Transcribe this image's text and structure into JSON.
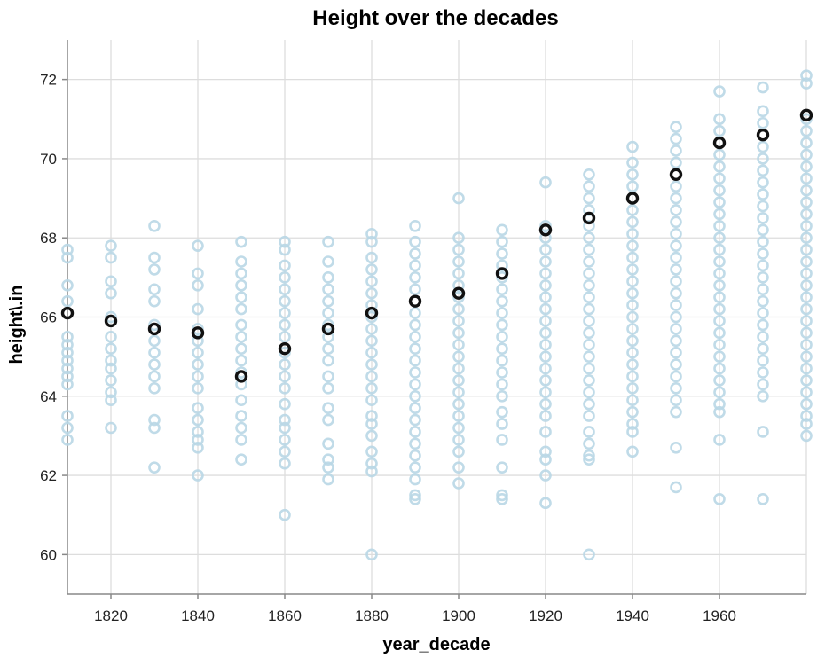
{
  "chart_data": {
    "type": "scatter",
    "title": "Height over the decades",
    "xlabel": "year_decade",
    "ylabel": "height\\.in",
    "xlim": [
      1810,
      1980
    ],
    "ylim": [
      59,
      73
    ],
    "xticks": [
      1820,
      1840,
      1860,
      1880,
      1900,
      1920,
      1940,
      1960
    ],
    "yticks": [
      60,
      62,
      64,
      66,
      68,
      70,
      72
    ],
    "grid": true,
    "colors": {
      "individual": "#b9d7e5",
      "mean": "#111111"
    },
    "series": [
      {
        "role": "individual",
        "columns": [
          {
            "x": 1810,
            "y": [
              67.7,
              67.5,
              66.8,
              66.4,
              66.1,
              65.5,
              65.3,
              65.1,
              64.9,
              64.7,
              64.5,
              64.3,
              63.5,
              63.2,
              62.9
            ]
          },
          {
            "x": 1820,
            "y": [
              67.8,
              67.5,
              66.9,
              66.6,
              66.0,
              65.5,
              65.2,
              64.9,
              64.7,
              64.4,
              64.1,
              63.9,
              63.2
            ]
          },
          {
            "x": 1830,
            "y": [
              68.3,
              67.5,
              67.2,
              66.7,
              66.4,
              65.8,
              65.4,
              65.1,
              64.8,
              64.5,
              64.2,
              63.4,
              63.2,
              62.2
            ]
          },
          {
            "x": 1840,
            "y": [
              67.8,
              67.1,
              66.8,
              66.2,
              65.7,
              65.4,
              65.1,
              64.8,
              64.5,
              64.2,
              63.7,
              63.4,
              63.1,
              62.9,
              62.7,
              62.0
            ]
          },
          {
            "x": 1850,
            "y": [
              67.9,
              67.4,
              67.1,
              66.8,
              66.5,
              66.2,
              65.8,
              65.5,
              65.2,
              64.9,
              64.6,
              64.3,
              63.9,
              63.5,
              63.2,
              62.9,
              62.4
            ]
          },
          {
            "x": 1860,
            "y": [
              67.9,
              67.7,
              67.3,
              67.0,
              66.7,
              66.4,
              66.1,
              65.8,
              65.5,
              65.1,
              64.8,
              64.5,
              64.2,
              63.8,
              63.4,
              63.2,
              62.9,
              62.6,
              62.3,
              61.0
            ]
          },
          {
            "x": 1870,
            "y": [
              67.9,
              67.4,
              67.0,
              66.7,
              66.4,
              66.1,
              65.8,
              65.5,
              65.2,
              64.9,
              64.5,
              64.2,
              63.7,
              63.4,
              62.8,
              62.4,
              62.2,
              61.9
            ]
          },
          {
            "x": 1880,
            "y": [
              68.1,
              67.9,
              67.5,
              67.2,
              66.9,
              66.6,
              66.3,
              66.0,
              65.7,
              65.4,
              65.1,
              64.8,
              64.5,
              64.2,
              63.9,
              63.5,
              63.3,
              63.0,
              62.6,
              62.3,
              62.1,
              60.0
            ]
          },
          {
            "x": 1890,
            "y": [
              68.3,
              67.9,
              67.6,
              67.3,
              67.0,
              66.7,
              66.4,
              66.1,
              65.8,
              65.5,
              65.2,
              64.9,
              64.6,
              64.3,
              64.0,
              63.7,
              63.4,
              63.1,
              62.8,
              62.5,
              62.2,
              61.9,
              61.5,
              61.4
            ]
          },
          {
            "x": 1900,
            "y": [
              69.0,
              68.0,
              67.7,
              67.4,
              67.1,
              66.8,
              66.5,
              66.2,
              65.9,
              65.6,
              65.3,
              65.0,
              64.7,
              64.4,
              64.1,
              63.8,
              63.5,
              63.2,
              62.9,
              62.6,
              62.2,
              61.8
            ]
          },
          {
            "x": 1910,
            "y": [
              68.2,
              67.9,
              67.6,
              67.3,
              67.0,
              66.7,
              66.4,
              66.1,
              65.8,
              65.5,
              65.2,
              64.9,
              64.6,
              64.3,
              64.0,
              63.6,
              63.3,
              62.9,
              62.2,
              61.5,
              61.4
            ]
          },
          {
            "x": 1920,
            "y": [
              69.4,
              68.3,
              68.0,
              67.7,
              67.4,
              67.1,
              66.8,
              66.5,
              66.2,
              65.9,
              65.6,
              65.3,
              65.0,
              64.7,
              64.4,
              64.1,
              63.8,
              63.5,
              63.1,
              62.6,
              62.4,
              62.0,
              61.3
            ]
          },
          {
            "x": 1930,
            "y": [
              69.6,
              69.3,
              69.0,
              68.7,
              68.3,
              68.0,
              67.7,
              67.4,
              67.1,
              66.8,
              66.5,
              66.2,
              65.9,
              65.6,
              65.3,
              65.0,
              64.7,
              64.4,
              64.1,
              63.8,
              63.5,
              63.1,
              62.8,
              62.5,
              62.4,
              60.0
            ]
          },
          {
            "x": 1940,
            "y": [
              70.3,
              69.9,
              69.6,
              69.3,
              69.0,
              68.7,
              68.4,
              68.1,
              67.8,
              67.5,
              67.2,
              66.9,
              66.6,
              66.3,
              66.0,
              65.7,
              65.4,
              65.1,
              64.8,
              64.5,
              64.2,
              63.9,
              63.6,
              63.3,
              63.1,
              62.6
            ]
          },
          {
            "x": 1950,
            "y": [
              70.8,
              70.5,
              70.2,
              69.9,
              69.6,
              69.3,
              69.0,
              68.7,
              68.4,
              68.1,
              67.8,
              67.5,
              67.2,
              66.9,
              66.6,
              66.3,
              66.0,
              65.7,
              65.4,
              65.1,
              64.8,
              64.5,
              64.2,
              63.9,
              63.6,
              62.7,
              61.7
            ]
          },
          {
            "x": 1960,
            "y": [
              71.7,
              71.0,
              70.7,
              70.4,
              70.1,
              69.8,
              69.5,
              69.2,
              68.9,
              68.6,
              68.3,
              68.0,
              67.7,
              67.4,
              67.1,
              66.8,
              66.5,
              66.2,
              65.9,
              65.6,
              65.3,
              65.0,
              64.7,
              64.4,
              64.1,
              63.8,
              63.6,
              62.9,
              61.4
            ]
          },
          {
            "x": 1970,
            "y": [
              71.8,
              71.2,
              70.9,
              70.6,
              70.3,
              70.0,
              69.7,
              69.4,
              69.1,
              68.8,
              68.5,
              68.2,
              67.9,
              67.6,
              67.3,
              67.0,
              66.7,
              66.4,
              66.1,
              65.8,
              65.5,
              65.2,
              64.9,
              64.6,
              64.3,
              64.0,
              63.1,
              61.4
            ]
          },
          {
            "x": 1980,
            "y": [
              72.1,
              71.9,
              71.0,
              70.7,
              70.4,
              70.1,
              69.8,
              69.5,
              69.2,
              68.9,
              68.6,
              68.3,
              68.0,
              67.7,
              67.4,
              67.1,
              66.8,
              66.5,
              66.2,
              65.9,
              65.6,
              65.3,
              65.0,
              64.7,
              64.4,
              64.1,
              63.8,
              63.5,
              63.3,
              63.0
            ]
          }
        ]
      },
      {
        "role": "mean",
        "x": [
          1810,
          1820,
          1830,
          1840,
          1850,
          1860,
          1870,
          1880,
          1890,
          1900,
          1910,
          1920,
          1930,
          1940,
          1950,
          1960,
          1970,
          1980
        ],
        "y": [
          66.1,
          65.9,
          65.7,
          65.6,
          64.5,
          65.2,
          65.7,
          66.1,
          66.4,
          66.6,
          67.1,
          68.2,
          68.5,
          69.0,
          69.6,
          70.4,
          70.6,
          71.1
        ]
      }
    ]
  }
}
